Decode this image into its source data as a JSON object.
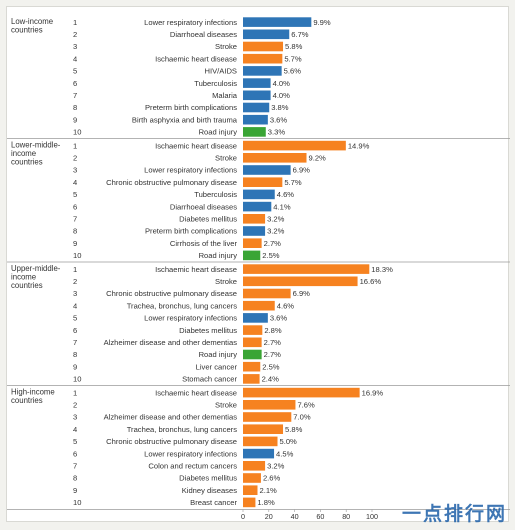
{
  "chart_data": {
    "type": "bar",
    "orientation": "horizontal",
    "xlim": [
      0,
      100
    ],
    "xticks": [
      "0",
      "20",
      "40",
      "60",
      "80",
      "100"
    ],
    "grid": false,
    "colors": {
      "communicable": "#2e75b6",
      "noncommunicable": "#f68220",
      "injuries": "#3aa535"
    },
    "groups": [
      {
        "name": "Low-income countries",
        "bars": [
          {
            "rank": "1",
            "label": "Lower respiratory infections",
            "value": 9.9,
            "display": "9.9%",
            "category": "communicable"
          },
          {
            "rank": "2",
            "label": "Diarrhoeal diseases",
            "value": 6.7,
            "display": "6.7%",
            "category": "communicable"
          },
          {
            "rank": "3",
            "label": "Stroke",
            "value": 5.8,
            "display": "5.8%",
            "category": "noncommunicable"
          },
          {
            "rank": "4",
            "label": "Ischaemic heart disease",
            "value": 5.7,
            "display": "5.7%",
            "category": "noncommunicable"
          },
          {
            "rank": "5",
            "label": "HIV/AIDS",
            "value": 5.6,
            "display": "5.6%",
            "category": "communicable"
          },
          {
            "rank": "6",
            "label": "Tuberculosis",
            "value": 4.0,
            "display": "4.0%",
            "category": "communicable"
          },
          {
            "rank": "7",
            "label": "Malaria",
            "value": 4.0,
            "display": "4.0%",
            "category": "communicable"
          },
          {
            "rank": "8",
            "label": "Preterm birth complications",
            "value": 3.8,
            "display": "3.8%",
            "category": "communicable"
          },
          {
            "rank": "9",
            "label": "Birth asphyxia and birth trauma",
            "value": 3.6,
            "display": "3.6%",
            "category": "communicable"
          },
          {
            "rank": "10",
            "label": "Road injury",
            "value": 3.3,
            "display": "3.3%",
            "category": "injuries"
          }
        ]
      },
      {
        "name": "Lower-middle-income countries",
        "bars": [
          {
            "rank": "1",
            "label": "Ischaemic heart disease",
            "value": 14.9,
            "display": "14.9%",
            "category": "noncommunicable"
          },
          {
            "rank": "2",
            "label": "Stroke",
            "value": 9.2,
            "display": "9.2%",
            "category": "noncommunicable"
          },
          {
            "rank": "3",
            "label": "Lower respiratory infections",
            "value": 6.9,
            "display": "6.9%",
            "category": "communicable"
          },
          {
            "rank": "4",
            "label": "Chronic obstructive pulmonary disease",
            "value": 5.7,
            "display": "5.7%",
            "category": "noncommunicable"
          },
          {
            "rank": "5",
            "label": "Tuberculosis",
            "value": 4.6,
            "display": "4.6%",
            "category": "communicable"
          },
          {
            "rank": "6",
            "label": "Diarrhoeal diseases",
            "value": 4.1,
            "display": "4.1%",
            "category": "communicable"
          },
          {
            "rank": "7",
            "label": "Diabetes mellitus",
            "value": 3.2,
            "display": "3.2%",
            "category": "noncommunicable"
          },
          {
            "rank": "8",
            "label": "Preterm birth complications",
            "value": 3.2,
            "display": "3.2%",
            "category": "communicable"
          },
          {
            "rank": "9",
            "label": "Cirrhosis of the liver",
            "value": 2.7,
            "display": "2.7%",
            "category": "noncommunicable"
          },
          {
            "rank": "10",
            "label": "Road injury",
            "value": 2.5,
            "display": "2.5%",
            "category": "injuries"
          }
        ]
      },
      {
        "name": "Upper-middle-income countries",
        "bars": [
          {
            "rank": "1",
            "label": "Ischaemic heart disease",
            "value": 18.3,
            "display": "18.3%",
            "category": "noncommunicable"
          },
          {
            "rank": "2",
            "label": "Stroke",
            "value": 16.6,
            "display": "16.6%",
            "category": "noncommunicable"
          },
          {
            "rank": "3",
            "label": "Chronic obstructive pulmonary disease",
            "value": 6.9,
            "display": "6.9%",
            "category": "noncommunicable"
          },
          {
            "rank": "4",
            "label": "Trachea, bronchus, lung cancers",
            "value": 4.6,
            "display": "4.6%",
            "category": "noncommunicable"
          },
          {
            "rank": "5",
            "label": "Lower respiratory infections",
            "value": 3.6,
            "display": "3.6%",
            "category": "communicable"
          },
          {
            "rank": "6",
            "label": "Diabetes mellitus",
            "value": 2.8,
            "display": "2.8%",
            "category": "noncommunicable"
          },
          {
            "rank": "7",
            "label": "Alzheimer disease and other dementias",
            "value": 2.7,
            "display": "2.7%",
            "category": "noncommunicable"
          },
          {
            "rank": "8",
            "label": "Road injury",
            "value": 2.7,
            "display": "2.7%",
            "category": "injuries"
          },
          {
            "rank": "9",
            "label": "Liver cancer",
            "value": 2.5,
            "display": "2.5%",
            "category": "noncommunicable"
          },
          {
            "rank": "10",
            "label": "Stomach cancer",
            "value": 2.4,
            "display": "2.4%",
            "category": "noncommunicable"
          }
        ]
      },
      {
        "name": "High-income countries",
        "bars": [
          {
            "rank": "1",
            "label": "Ischaemic heart disease",
            "value": 16.9,
            "display": "16.9%",
            "category": "noncommunicable"
          },
          {
            "rank": "2",
            "label": "Stroke",
            "value": 7.6,
            "display": "7.6%",
            "category": "noncommunicable"
          },
          {
            "rank": "3",
            "label": "Alzheimer disease and other dementias",
            "value": 7.0,
            "display": "7.0%",
            "category": "noncommunicable"
          },
          {
            "rank": "4",
            "label": "Trachea, bronchus, lung cancers",
            "value": 5.8,
            "display": "5.8%",
            "category": "noncommunicable"
          },
          {
            "rank": "5",
            "label": "Chronic obstructive pulmonary disease",
            "value": 5.0,
            "display": "5.0%",
            "category": "noncommunicable"
          },
          {
            "rank": "6",
            "label": "Lower respiratory infections",
            "value": 4.5,
            "display": "4.5%",
            "category": "communicable"
          },
          {
            "rank": "7",
            "label": "Colon and rectum cancers",
            "value": 3.2,
            "display": "3.2%",
            "category": "noncommunicable"
          },
          {
            "rank": "8",
            "label": "Diabetes mellitus",
            "value": 2.6,
            "display": "2.6%",
            "category": "noncommunicable"
          },
          {
            "rank": "9",
            "label": "Kidney diseases",
            "value": 2.1,
            "display": "2.1%",
            "category": "noncommunicable"
          },
          {
            "rank": "10",
            "label": "Breast cancer",
            "value": 1.8,
            "display": "1.8%",
            "category": "noncommunicable"
          }
        ]
      }
    ]
  },
  "watermark": "一点排行网"
}
